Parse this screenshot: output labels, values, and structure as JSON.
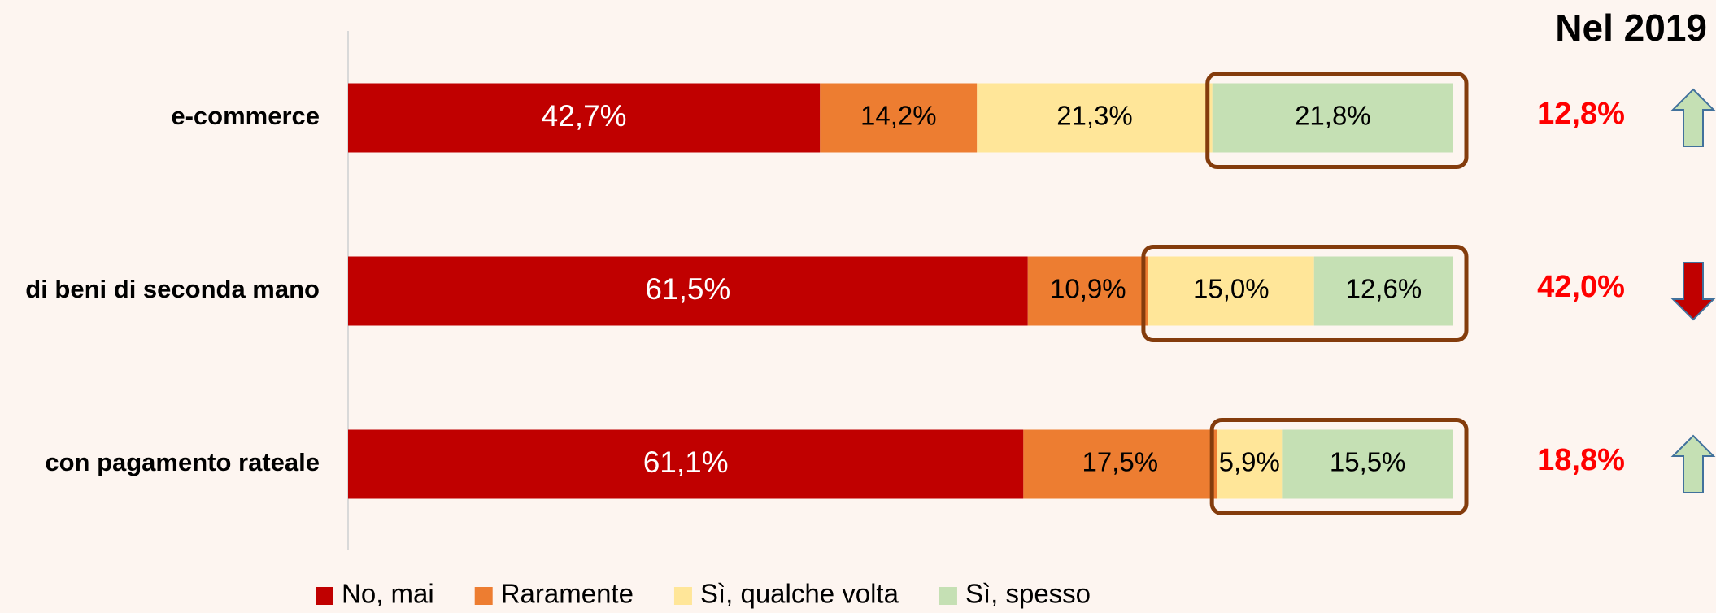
{
  "chart_data": {
    "type": "stacked_bar_horizontal",
    "categories": [
      "e-commerce",
      "di beni di seconda mano",
      "con pagamento rateale"
    ],
    "xlim": [
      0,
      100
    ],
    "series": [
      {
        "name": "No, mai",
        "color": "#c00000",
        "values": [
          42.7,
          61.5,
          61.1
        ],
        "value_labels": [
          "42,7%",
          "61,5%",
          "61,1%"
        ]
      },
      {
        "name": "Raramente",
        "color": "#ed7d31",
        "values": [
          14.2,
          10.9,
          17.5
        ],
        "value_labels": [
          "14,2%",
          "10,9%",
          "17,5%"
        ]
      },
      {
        "name": "Sì, qualche volta",
        "color": "#ffe699",
        "values": [
          21.3,
          15.0,
          5.9
        ],
        "value_labels": [
          "21,3%",
          "15,0%",
          "5,9%"
        ]
      },
      {
        "name": "Sì, spesso",
        "color": "#c5e0b4",
        "values": [
          21.8,
          12.6,
          15.5
        ],
        "value_labels": [
          "21,8%",
          "12,6%",
          "15,5%"
        ]
      }
    ],
    "highlight_from_series": [
      3,
      2,
      2
    ],
    "legend": "bottom",
    "comparison": {
      "title": "Nel 2019",
      "values": [
        12.8,
        42.0,
        18.8
      ],
      "value_labels": [
        "12,8%",
        "42,0%",
        "18,8%"
      ],
      "color": "#ff0000",
      "arrows": [
        "up",
        "down",
        "up"
      ],
      "arrow_colors": {
        "up": "#c5e0b4",
        "down": "#c00000"
      }
    }
  }
}
